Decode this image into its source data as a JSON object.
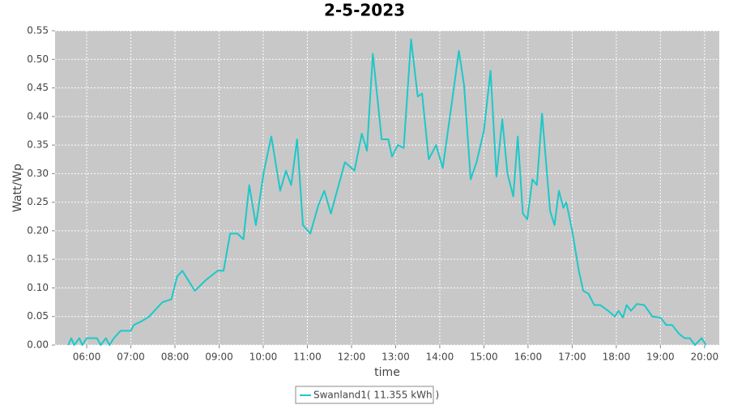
{
  "chart_data": {
    "type": "line",
    "title": "2-5-2023",
    "x_label": "time",
    "y_label": "Watt/Wp",
    "x": [
      "05:35",
      "05:39",
      "05:43",
      "05:50",
      "05:54",
      "06:00",
      "06:14",
      "06:19",
      "06:26",
      "06:31",
      "06:37",
      "06:46",
      "07:00",
      "07:04",
      "07:15",
      "07:25",
      "07:32",
      "07:43",
      "07:55",
      "08:03",
      "08:10",
      "08:27",
      "08:43",
      "08:58",
      "09:06",
      "09:15",
      "09:25",
      "09:33",
      "09:41",
      "09:50",
      "10:01",
      "10:11",
      "10:23",
      "10:31",
      "10:38",
      "10:46",
      "10:54",
      "11:04",
      "11:15",
      "11:23",
      "11:32",
      "11:51",
      "12:04",
      "12:14",
      "12:21",
      "12:29",
      "12:41",
      "12:50",
      "12:55",
      "13:03",
      "13:11",
      "13:21",
      "13:30",
      "13:36",
      "13:45",
      "13:55",
      "14:04",
      "14:17",
      "14:26",
      "14:33",
      "14:42",
      "14:50",
      "15:00",
      "15:09",
      "15:17",
      "15:25",
      "15:32",
      "15:40",
      "15:46",
      "15:53",
      "15:59",
      "16:06",
      "16:12",
      "16:19",
      "16:30",
      "16:36",
      "16:42",
      "16:48",
      "16:52",
      "17:00",
      "17:09",
      "17:15",
      "17:22",
      "17:30",
      "17:38",
      "17:49",
      "17:58",
      "18:03",
      "18:09",
      "18:14",
      "18:20",
      "18:28",
      "18:38",
      "18:49",
      "19:00",
      "19:08",
      "19:16",
      "19:25",
      "19:33",
      "19:40",
      "19:47",
      "19:56",
      "20:02"
    ],
    "series": [
      {
        "name": "Swanland1( 11.355 kWh )",
        "color": "#1ec8c8",
        "values": [
          0,
          0.012,
          0,
          0.012,
          0,
          0.012,
          0.012,
          0,
          0.012,
          0,
          0.012,
          0.025,
          0.025,
          0.035,
          0.042,
          0.05,
          0.06,
          0.075,
          0.08,
          0.12,
          0.13,
          0.095,
          0.115,
          0.13,
          0.13,
          0.195,
          0.195,
          0.185,
          0.28,
          0.21,
          0.305,
          0.365,
          0.27,
          0.305,
          0.28,
          0.36,
          0.21,
          0.195,
          0.245,
          0.27,
          0.23,
          0.32,
          0.305,
          0.37,
          0.34,
          0.51,
          0.36,
          0.36,
          0.33,
          0.35,
          0.345,
          0.535,
          0.435,
          0.44,
          0.325,
          0.35,
          0.31,
          0.43,
          0.515,
          0.455,
          0.29,
          0.32,
          0.375,
          0.48,
          0.295,
          0.395,
          0.3,
          0.26,
          0.365,
          0.23,
          0.22,
          0.29,
          0.28,
          0.405,
          0.235,
          0.21,
          0.27,
          0.24,
          0.25,
          0.2,
          0.13,
          0.095,
          0.09,
          0.07,
          0.07,
          0.06,
          0.05,
          0.06,
          0.048,
          0.07,
          0.06,
          0.072,
          0.07,
          0.05,
          0.048,
          0.035,
          0.035,
          0.02,
          0.012,
          0.012,
          0,
          0.012,
          0
        ]
      }
    ],
    "xlim": [
      "05:17",
      "20:20"
    ],
    "xticks": [
      "06:00",
      "07:00",
      "08:00",
      "09:00",
      "10:00",
      "11:00",
      "12:00",
      "13:00",
      "14:00",
      "15:00",
      "16:00",
      "17:00",
      "18:00",
      "19:00",
      "20:00"
    ],
    "ylim": [
      0,
      0.55
    ],
    "yticks": [
      {
        "value": 0,
        "label": "0.00"
      },
      {
        "value": 0.05,
        "label": "0.05"
      },
      {
        "value": 0.1,
        "label": "0.10"
      },
      {
        "value": 0.15,
        "label": "0.15"
      },
      {
        "value": 0.2,
        "label": "0.20"
      },
      {
        "value": 0.25,
        "label": "0.25"
      },
      {
        "value": 0.3,
        "label": "0.30"
      },
      {
        "value": 0.35,
        "label": "0.35"
      },
      {
        "value": 0.4,
        "label": "0.40"
      },
      {
        "value": 0.45,
        "label": "0.45"
      },
      {
        "value": 0.5,
        "label": "0.50"
      },
      {
        "value": 0.55,
        "label": "0.55"
      }
    ],
    "grid": true,
    "legend": "bottom"
  }
}
